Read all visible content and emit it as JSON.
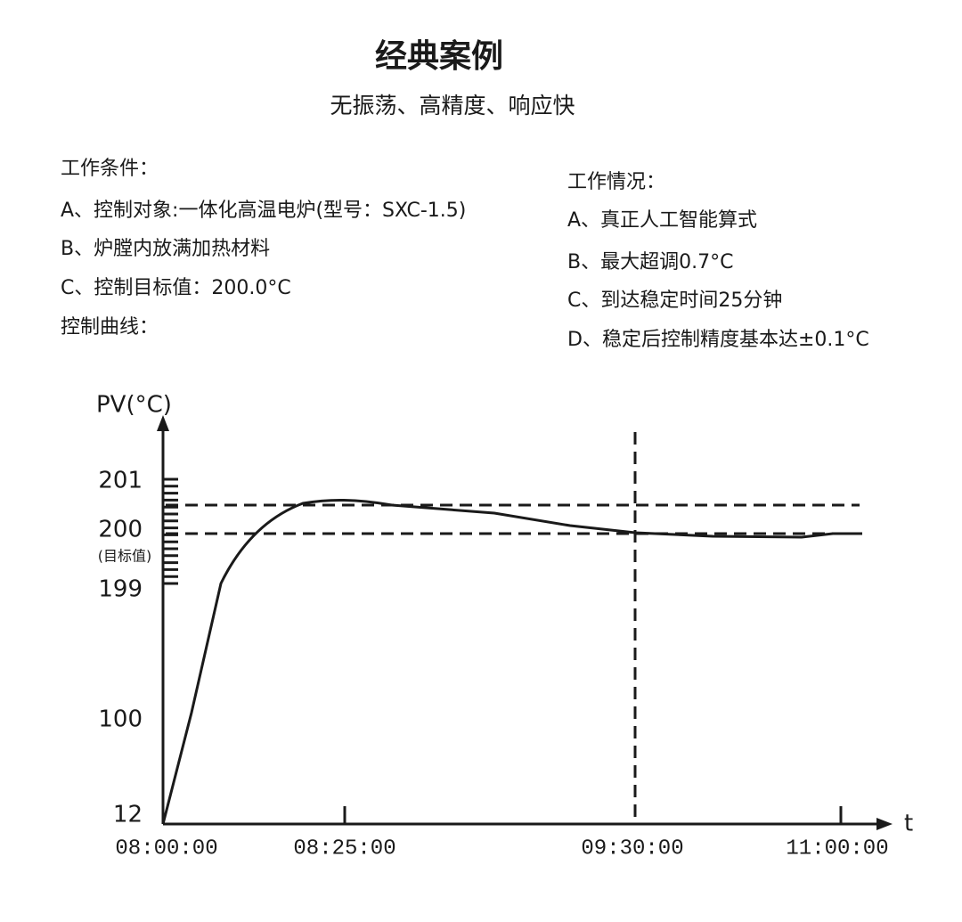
{
  "header": {
    "title": "经典案例",
    "subtitle": "无振荡、高精度、响应快"
  },
  "conditions": {
    "heading": "工作条件：",
    "items": [
      "A、控制对象:一体化高温电炉(型号：SXC-1.5)",
      "B、炉膛内放满加热材料",
      "C、控制目标值：200.0°C"
    ]
  },
  "curve_heading": "控制曲线：",
  "status": {
    "heading": "工作情况：",
    "items": [
      "A、真正人工智能算式",
      "B、最大超调0.7°C",
      "C、到达稳定时间25分钟",
      "D、稳定后控制精度基本达±0.1°C"
    ]
  },
  "chart": {
    "y_axis_label": "PV(°C)",
    "x_axis_label": "t",
    "y_labels": [
      201,
      200,
      199,
      100,
      12
    ],
    "target_note": "(目标值)",
    "x_labels": [
      "08:00:00",
      "08:25:00",
      "09:30:00",
      "11:00:00"
    ]
  }
}
